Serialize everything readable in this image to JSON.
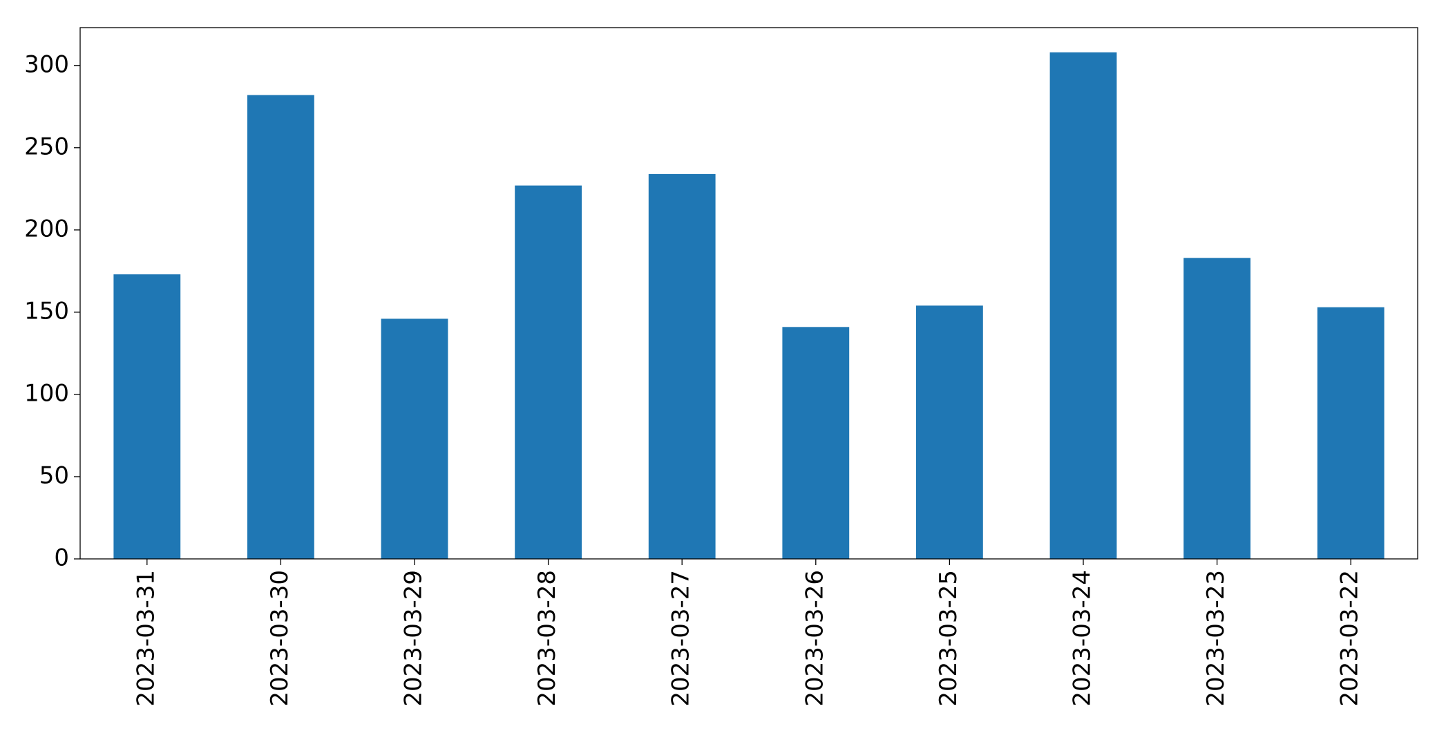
{
  "chart_data": {
    "type": "bar",
    "categories": [
      "2023-03-31",
      "2023-03-30",
      "2023-03-29",
      "2023-03-28",
      "2023-03-27",
      "2023-03-26",
      "2023-03-25",
      "2023-03-24",
      "2023-03-23",
      "2023-03-22"
    ],
    "values": [
      173,
      282,
      146,
      227,
      234,
      141,
      154,
      308,
      183,
      153
    ],
    "color": "#1f77b4",
    "ylim": [
      0,
      323
    ],
    "yticks": [
      0,
      50,
      100,
      150,
      200,
      250,
      300
    ],
    "grid": false
  }
}
